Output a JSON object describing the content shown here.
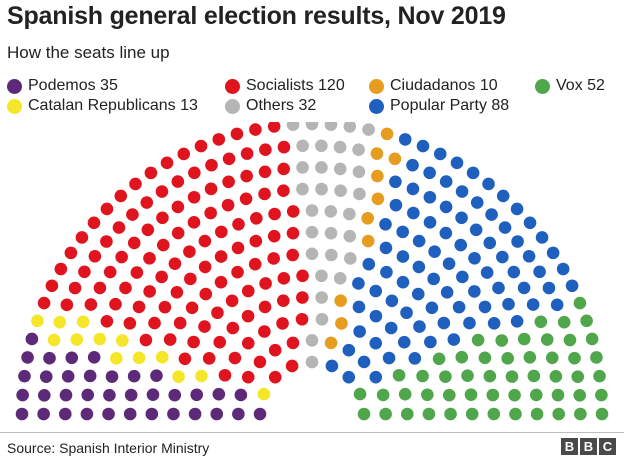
{
  "chart_data": {
    "type": "parliament",
    "title": "Spanish general election results, Nov 2019",
    "subtitle": "How the seats line up",
    "total_seats": 350,
    "series": [
      {
        "name": "Podemos",
        "value": 35,
        "color": "#5c2a78",
        "label": "Podemos 35"
      },
      {
        "name": "Catalan Republicans",
        "value": 13,
        "color": "#f5e62a",
        "label": "Catalan Republicans 13"
      },
      {
        "name": "Socialists",
        "value": 120,
        "color": "#e0141e",
        "label": "Socialists 120"
      },
      {
        "name": "Others",
        "value": 32,
        "color": "#b5b5b5",
        "label": "Others 32"
      },
      {
        "name": "Ciudadanos",
        "value": 10,
        "color": "#e59c1f",
        "label": "Ciudadanos 10"
      },
      {
        "name": "Popular Party",
        "value": 88,
        "color": "#1f5fbe",
        "label": "Popular Party 88"
      },
      {
        "name": "Vox",
        "value": 52,
        "color": "#4fa64b",
        "label": "Vox 52"
      }
    ],
    "legend_position": "top"
  },
  "footer": {
    "source": "Source: Spanish Interior Ministry",
    "logo_letters": [
      "B",
      "B",
      "C"
    ]
  }
}
